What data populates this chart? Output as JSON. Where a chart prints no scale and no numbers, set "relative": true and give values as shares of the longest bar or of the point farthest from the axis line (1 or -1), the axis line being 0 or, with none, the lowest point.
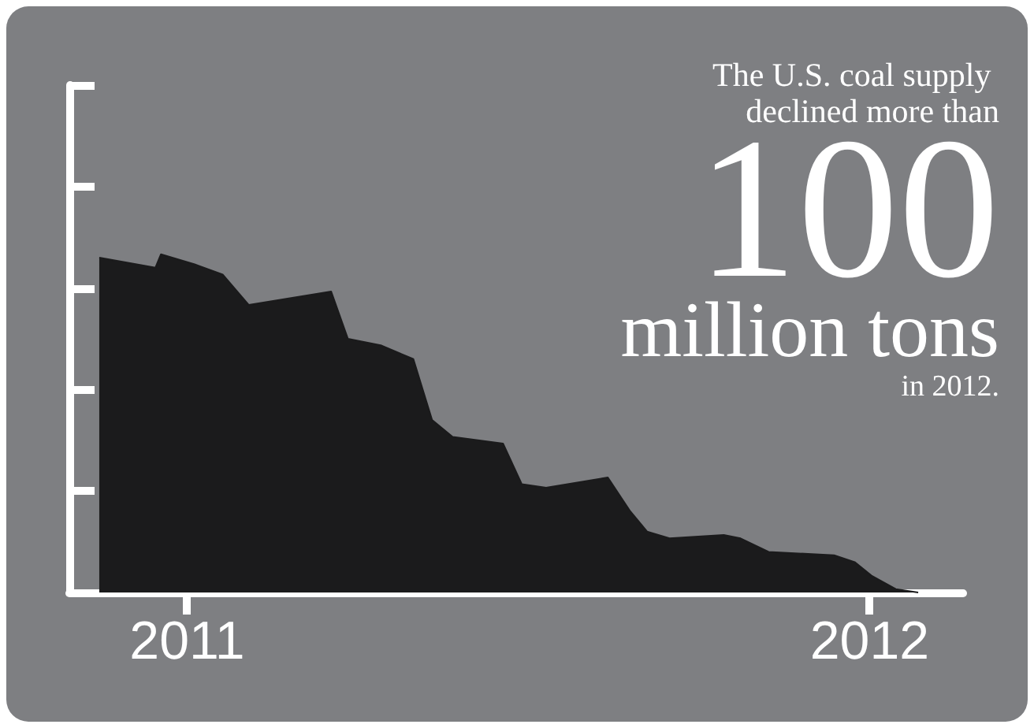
{
  "chart_data": {
    "type": "area",
    "relative": true,
    "color": "#1b1b1c",
    "x": [
      "2010-11-15",
      "2010-12-15",
      "2010-12-18",
      "2011-01-05",
      "2011-01-20",
      "2011-02-03",
      "2011-03-19",
      "2011-03-28",
      "2011-04-15",
      "2011-05-02",
      "2011-05-12",
      "2011-05-23",
      "2011-06-19",
      "2011-06-29",
      "2011-07-12",
      "2011-08-14",
      "2011-08-26",
      "2011-09-04",
      "2011-09-16",
      "2011-10-15",
      "2011-10-24",
      "2011-11-08",
      "2011-12-13",
      "2011-12-24",
      "2012-01-02",
      "2012-01-15",
      "2012-01-27"
    ],
    "values": [
      0.99,
      0.96,
      1.0,
      0.97,
      0.94,
      0.85,
      0.89,
      0.75,
      0.73,
      0.69,
      0.51,
      0.46,
      0.44,
      0.32,
      0.31,
      0.34,
      0.24,
      0.18,
      0.16,
      0.17,
      0.16,
      0.12,
      0.11,
      0.09,
      0.05,
      0.01,
      0
    ],
    "xlim": [
      "2010-10-30",
      "2012-02-20"
    ],
    "xticks": [
      "2011",
      "2012"
    ],
    "tick_labels": "x",
    "annotations": [
      "The U.S. coal supply declined more than",
      "100",
      "million tons",
      "in 2012."
    ]
  }
}
